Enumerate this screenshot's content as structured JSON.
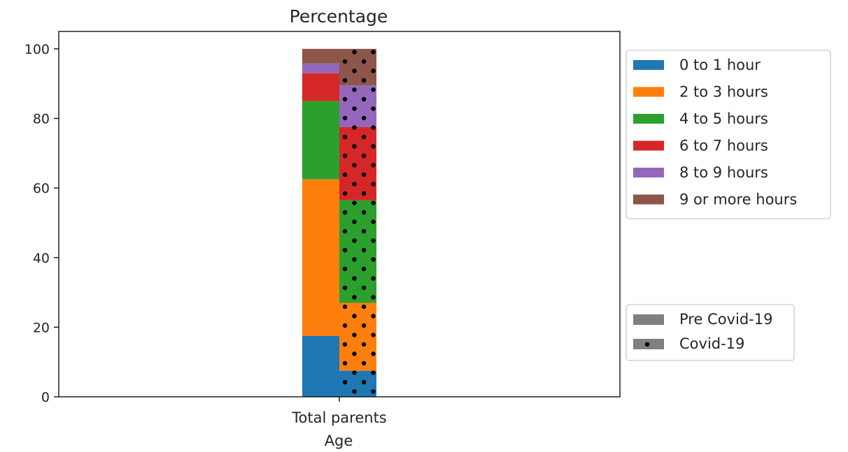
{
  "chart_data": {
    "type": "bar",
    "title": "Percentage",
    "xlabel": "Age",
    "ylabel": "",
    "categories": [
      "Total parents"
    ],
    "ylim": [
      0,
      105
    ],
    "yticks": [
      0,
      20,
      40,
      60,
      80,
      100
    ],
    "stacked": true,
    "series": [
      {
        "name": "0 to 1 hour",
        "color": "#1f77b4",
        "pre_covid": [
          17.5
        ],
        "covid": [
          7.5
        ]
      },
      {
        "name": "2 to 3 hours",
        "color": "#ff7f0e",
        "pre_covid": [
          45.0
        ],
        "covid": [
          19.5
        ]
      },
      {
        "name": "4 to 5 hours",
        "color": "#2ca02c",
        "pre_covid": [
          22.5
        ],
        "covid": [
          29.5
        ]
      },
      {
        "name": "6 to 7 hours",
        "color": "#d62728",
        "pre_covid": [
          8.0
        ],
        "covid": [
          21.0
        ]
      },
      {
        "name": "8 to 9 hours",
        "color": "#9467bd",
        "pre_covid": [
          2.8
        ],
        "covid": [
          12.0
        ]
      },
      {
        "name": "9 or more hours",
        "color": "#8c564b",
        "pre_covid": [
          4.2
        ],
        "covid": [
          10.5
        ]
      }
    ],
    "pattern_legend": [
      {
        "label": "Pre Covid-19",
        "hatch": "none"
      },
      {
        "label": "Covid-19",
        "hatch": "dots"
      }
    ],
    "legend_position": "right",
    "grid": false
  }
}
